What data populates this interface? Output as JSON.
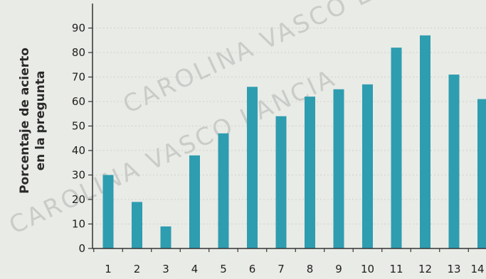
{
  "watermark": "CAROLINA VASCO LANCIA",
  "chart_data": {
    "type": "bar",
    "title": "",
    "xlabel": "",
    "ylabel_lines": [
      "Porcentaje de acierto",
      "en la pregunta"
    ],
    "categories": [
      "1",
      "2",
      "3",
      "4",
      "5",
      "6",
      "7",
      "8",
      "9",
      "10",
      "11",
      "12",
      "13",
      "14"
    ],
    "values": [
      30,
      19,
      9,
      38,
      47,
      66,
      54,
      62,
      65,
      67,
      82,
      87,
      71,
      61
    ],
    "ylim": [
      0,
      100
    ],
    "yticks": [
      0,
      10,
      20,
      30,
      40,
      50,
      60,
      70,
      80,
      90
    ],
    "grid": true,
    "bar_color": "#2e9db0",
    "grid_color": "#cfd2cd"
  }
}
